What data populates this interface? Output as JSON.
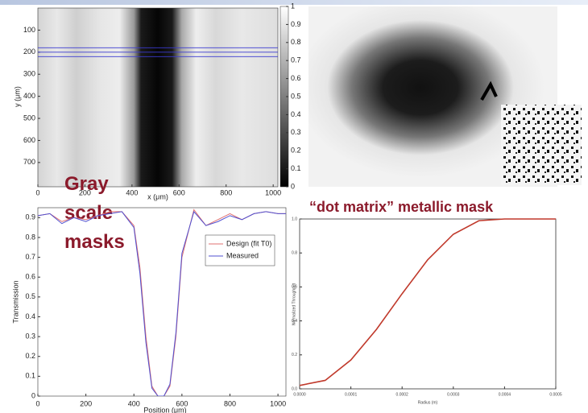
{
  "slide": {
    "caption_left": "Gray scale masks",
    "caption_right": "“dot matrix” metallic mask"
  },
  "chart_data": [
    {
      "type": "heatmap",
      "xlabel": "x (μm)",
      "ylabel": "y (μm)",
      "xlim": [
        0,
        1020
      ],
      "ylim": [
        0,
        810
      ],
      "xticks": [
        0,
        200,
        400,
        600,
        800,
        1000
      ],
      "yticks": [
        100,
        200,
        300,
        400,
        500,
        600,
        700
      ],
      "clim": [
        0,
        1
      ],
      "cticks": [
        0,
        0.1,
        0.2,
        0.3,
        0.4,
        0.5,
        0.6,
        0.7,
        0.8,
        0.9,
        1
      ],
      "hlines": [
        180,
        200,
        220
      ],
      "hline_color": "#3b3bd0"
    },
    {
      "type": "line",
      "xlabel": "Position (μm)",
      "ylabel": "Transmission",
      "xlim": [
        0,
        1050
      ],
      "ylim": [
        0,
        0.95
      ],
      "xticks": [
        0,
        200,
        400,
        600,
        800,
        1000
      ],
      "yticks": [
        0,
        0.1,
        0.2,
        0.3,
        0.4,
        0.5,
        0.6,
        0.7,
        0.8,
        0.9
      ],
      "x": [
        0,
        50,
        100,
        150,
        200,
        250,
        300,
        350,
        400,
        425,
        450,
        475,
        500,
        525,
        550,
        575,
        600,
        650,
        700,
        750,
        800,
        850,
        900,
        950,
        1000,
        1050
      ],
      "series": [
        {
          "name": "Design (fit T0)",
          "color": "#e07070",
          "values": [
            0.91,
            0.92,
            0.88,
            0.9,
            0.89,
            0.91,
            0.93,
            0.93,
            0.86,
            0.65,
            0.3,
            0.05,
            0.0,
            0.0,
            0.05,
            0.3,
            0.7,
            0.94,
            0.86,
            0.89,
            0.92,
            0.89,
            0.92,
            0.93,
            0.92,
            0.92
          ]
        },
        {
          "name": "Measured",
          "color": "#5050d0",
          "values": [
            0.91,
            0.92,
            0.87,
            0.9,
            0.88,
            0.91,
            0.92,
            0.93,
            0.85,
            0.62,
            0.27,
            0.04,
            0.0,
            0.0,
            0.06,
            0.32,
            0.72,
            0.93,
            0.86,
            0.88,
            0.91,
            0.89,
            0.92,
            0.93,
            0.92,
            0.92
          ]
        }
      ],
      "legend": "upper right"
    },
    {
      "type": "line",
      "xlabel": "Radius (m)",
      "ylabel": "Normalized Throughput",
      "xlim": [
        0,
        0.0005
      ],
      "ylim": [
        0,
        1
      ],
      "xticks": [
        {
          "value": 0,
          "label": "0.0000"
        },
        {
          "value": 0.0001,
          "label": "0.0001"
        },
        {
          "value": 0.0002,
          "label": "0.0002"
        },
        {
          "value": 0.0003,
          "label": "0.0003"
        },
        {
          "value": 0.0004,
          "label": "0.0004"
        },
        {
          "value": 0.0005,
          "label": "0.0005"
        }
      ],
      "yticks": [
        {
          "value": 0,
          "label": "0.0"
        },
        {
          "value": 0.2,
          "label": "0.2"
        },
        {
          "value": 0.4,
          "label": "0.4"
        },
        {
          "value": 0.6,
          "label": "0.6"
        },
        {
          "value": 0.8,
          "label": "0.8"
        },
        {
          "value": 1,
          "label": "1.0"
        }
      ],
      "x": [
        0,
        5e-05,
        0.0001,
        0.00015,
        0.0002,
        0.00025,
        0.0003,
        0.00035,
        0.0004,
        0.00045,
        0.0005
      ],
      "series": [
        {
          "name": "Throughput",
          "color": "#c0392b",
          "values": [
            0.02,
            0.05,
            0.17,
            0.35,
            0.56,
            0.76,
            0.91,
            0.99,
            1,
            1,
            1
          ]
        }
      ]
    }
  ]
}
